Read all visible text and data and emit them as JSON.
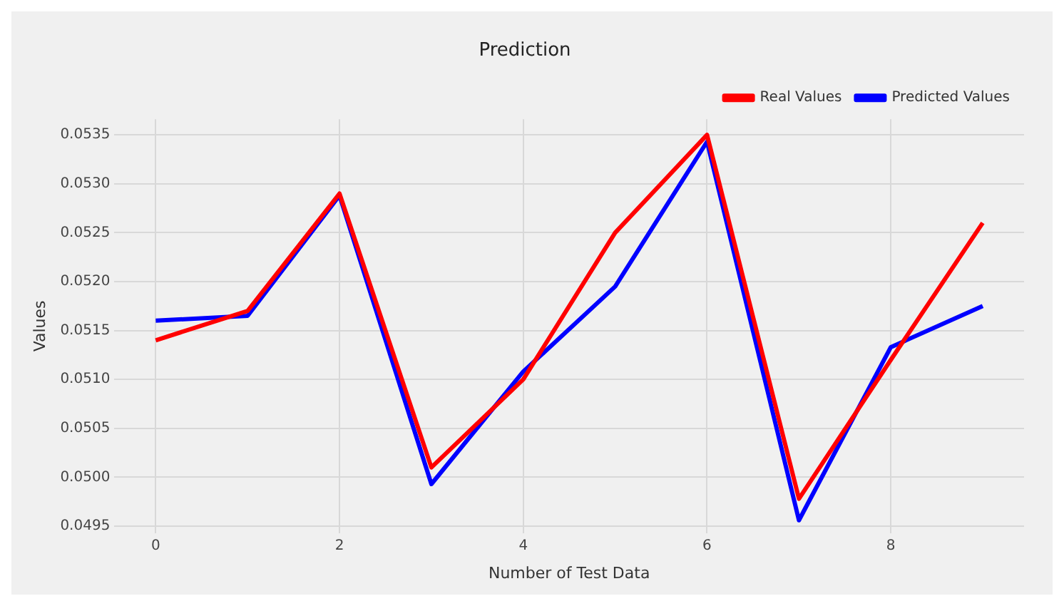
{
  "chart_data": {
    "type": "line",
    "title": "Prediction",
    "xlabel": "Number of Test Data",
    "ylabel": "Values",
    "x": [
      0,
      1,
      2,
      3,
      4,
      5,
      6,
      7,
      8,
      9
    ],
    "series": [
      {
        "name": "Real Values",
        "color": "#ff0000",
        "values": [
          0.0514,
          0.0517,
          0.0529,
          0.0501,
          0.051,
          0.0525,
          0.0535,
          0.04978,
          0.0512,
          0.0526
        ]
      },
      {
        "name": "Predicted Values",
        "color": "#0000ff",
        "values": [
          0.0516,
          0.05165,
          0.05288,
          0.04993,
          0.05108,
          0.05195,
          0.05343,
          0.04956,
          0.05133,
          0.05175
        ]
      }
    ],
    "xlim": [
      -0.45,
      9.45
    ],
    "xticks": [
      0,
      2,
      4,
      6,
      8
    ],
    "ylim": [
      0.04943,
      0.05366
    ],
    "yticks": [
      0.0495,
      {
        "value": 0.05,
        "label": "0.0500"
      },
      0.0505,
      {
        "value": 0.051,
        "label": "0.0510"
      },
      0.0515,
      {
        "value": 0.052,
        "label": "0.0520"
      },
      0.0525,
      {
        "value": 0.053,
        "label": "0.0530"
      },
      0.0535
    ],
    "grid": true,
    "legend": "top right",
    "marker": "none",
    "line_style": "solid"
  }
}
